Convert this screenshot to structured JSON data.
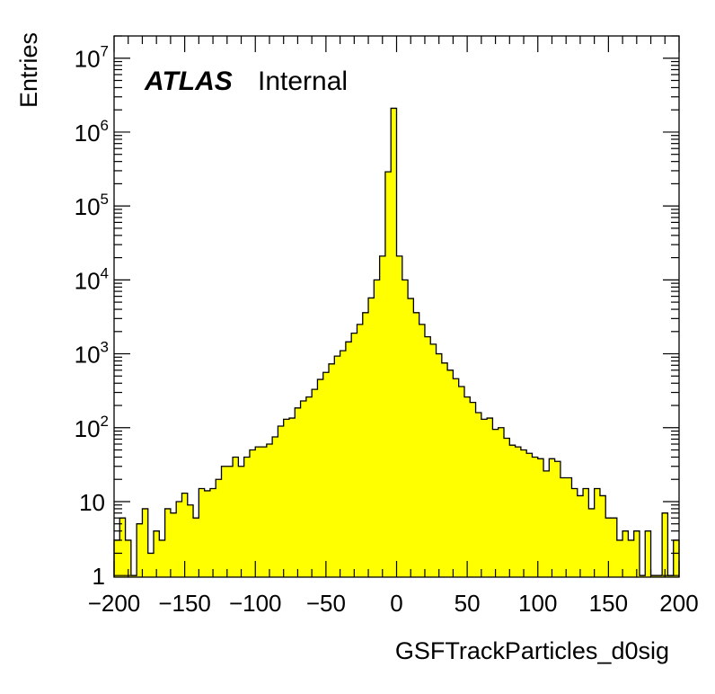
{
  "chart_data": {
    "type": "bar",
    "title": "",
    "xlabel": "GSFTrackParticles_d0sig",
    "ylabel": "Entries",
    "xlim": [
      -200,
      200
    ],
    "ylim": [
      0.95,
      20000000
    ],
    "y_scale": "log",
    "bin_width": 4,
    "fill_color": "#ffff00",
    "line_color": "#000000",
    "grid": false,
    "annotation": {
      "label_bold": "ATLAS",
      "label": "Internal",
      "placement": "top-left"
    },
    "x_ticks": [
      {
        "value": -200,
        "label": "−200"
      },
      {
        "value": -150,
        "label": "−150"
      },
      {
        "value": -100,
        "label": "−100"
      },
      {
        "value": -50,
        "label": "−50"
      },
      {
        "value": 0,
        "label": "0"
      },
      {
        "value": 50,
        "label": "50"
      },
      {
        "value": 100,
        "label": "100"
      },
      {
        "value": 150,
        "label": "150"
      },
      {
        "value": 200,
        "label": "200"
      }
    ],
    "y_ticks": [
      {
        "value": 1,
        "base": "1",
        "exp": ""
      },
      {
        "value": 10,
        "base": "10",
        "exp": ""
      },
      {
        "value": 100,
        "base": "10",
        "exp": "2"
      },
      {
        "value": 1000,
        "base": "10",
        "exp": "3"
      },
      {
        "value": 10000,
        "base": "10",
        "exp": "4"
      },
      {
        "value": 100000,
        "base": "10",
        "exp": "5"
      },
      {
        "value": 1000000,
        "base": "10",
        "exp": "6"
      },
      {
        "value": 10000000,
        "base": "10",
        "exp": "7"
      }
    ],
    "bin_low_edges": [
      -200,
      -196,
      -192,
      -188,
      -184,
      -180,
      -176,
      -172,
      -168,
      -164,
      -160,
      -156,
      -152,
      -148,
      -144,
      -140,
      -136,
      -132,
      -128,
      -124,
      -120,
      -116,
      -112,
      -108,
      -104,
      -100,
      -96,
      -92,
      -88,
      -84,
      -80,
      -76,
      -72,
      -68,
      -64,
      -60,
      -56,
      -52,
      -48,
      -44,
      -40,
      -36,
      -32,
      -28,
      -24,
      -20,
      -16,
      -12,
      -8,
      -4,
      0,
      4,
      8,
      12,
      16,
      20,
      24,
      28,
      32,
      36,
      40,
      44,
      48,
      52,
      56,
      60,
      64,
      68,
      72,
      76,
      80,
      84,
      88,
      92,
      96,
      100,
      104,
      108,
      112,
      116,
      120,
      124,
      128,
      132,
      136,
      140,
      144,
      148,
      152,
      156,
      160,
      164,
      168,
      172,
      176,
      180,
      184,
      188,
      192,
      196
    ],
    "values": [
      3,
      6,
      3,
      1,
      5,
      8,
      2,
      4,
      3,
      8,
      7,
      10,
      13,
      9,
      6,
      15,
      14,
      15,
      20,
      30,
      30,
      40,
      30,
      40,
      50,
      55,
      55,
      60,
      75,
      105,
      130,
      135,
      185,
      230,
      260,
      330,
      450,
      560,
      730,
      930,
      1100,
      1450,
      1900,
      2500,
      3600,
      5700,
      10000,
      21000,
      290000,
      2100000,
      21000,
      10000,
      5600,
      3600,
      2500,
      1700,
      1350,
      1000,
      750,
      600,
      460,
      360,
      260,
      220,
      160,
      130,
      135,
      95,
      100,
      72,
      58,
      55,
      50,
      45,
      40,
      38,
      26,
      38,
      35,
      21,
      21,
      15,
      12,
      15,
      8,
      15,
      12,
      6,
      6,
      3,
      4,
      3,
      4,
      1,
      4,
      1,
      1,
      7,
      1,
      3
    ],
    "series": [
      {
        "name": "",
        "values": []
      }
    ]
  }
}
